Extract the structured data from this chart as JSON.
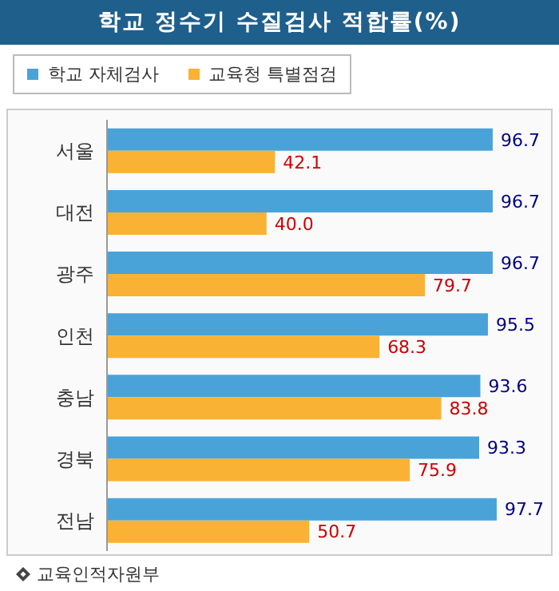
{
  "chart_data": {
    "type": "bar",
    "orientation": "horizontal",
    "title": "학교 정수기 수질검사 적합률(%)",
    "categories": [
      "서울",
      "대전",
      "광주",
      "인천",
      "충남",
      "경북",
      "전남"
    ],
    "series": [
      {
        "name": "학교 자체검사",
        "color": "#4aa3d8",
        "values": [
          96.7,
          96.7,
          96.7,
          95.5,
          93.6,
          93.3,
          97.7
        ],
        "value_labels": [
          "96.7",
          "96.7",
          "96.7",
          "95.5",
          "93.6",
          "93.3",
          "97.7"
        ]
      },
      {
        "name": "교육청 특별점검",
        "color": "#f9b233",
        "values": [
          42.1,
          40.0,
          79.7,
          68.3,
          83.8,
          75.9,
          50.7
        ],
        "value_labels": [
          "42.1",
          "40.0",
          "79.7",
          "68.3",
          "83.8",
          "75.9",
          "50.7"
        ]
      }
    ],
    "legend": "top left",
    "grid": false,
    "tick_labels": "y",
    "annotations": [
      "교육인적자원부"
    ]
  }
}
